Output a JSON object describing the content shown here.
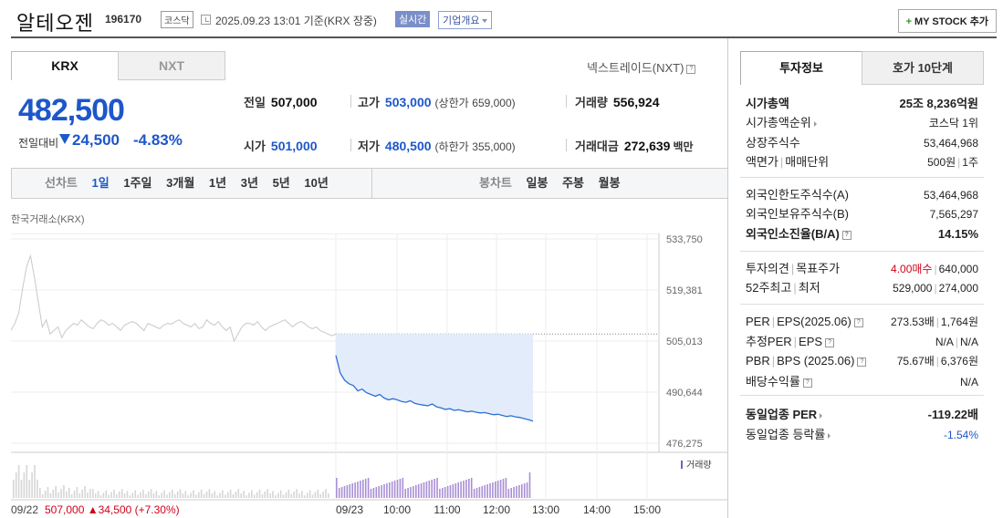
{
  "header": {
    "name": "알테오젠",
    "code": "196170",
    "market": "코스닥",
    "datetime": "2025.09.23 13:01",
    "basis": "기준(KRX 장중)",
    "live_badge": "실시간",
    "corp_info": "기업개요",
    "mystock_label": "MY STOCK 추가",
    "mystock_plus": "+"
  },
  "tabs": {
    "krx": "KRX",
    "nxt": "NXT",
    "nxt_link": "넥스트레이드(NXT)",
    "help": "?"
  },
  "price": {
    "current": "482,500",
    "change_label": "전일대비",
    "change": "24,500",
    "pct": "-4.83%"
  },
  "stats": {
    "prev_label": "전일",
    "prev": "507,000",
    "high_label": "고가",
    "high": "503,000",
    "upper_label": "(상한가",
    "upper": "659,000)",
    "volume_label": "거래량",
    "volume": "556,924",
    "open_label": "시가",
    "open": "501,000",
    "low_label": "저가",
    "low": "480,500",
    "lower_label": "(하한가",
    "lower": "355,000)",
    "amount_label": "거래대금",
    "amount": "272,639",
    "amount_unit": "백만"
  },
  "periods": {
    "line_label": "선차트",
    "line": [
      "1일",
      "1주일",
      "3개월",
      "1년",
      "3년",
      "5년",
      "10년"
    ],
    "candle_label": "봉차트",
    "candle": [
      "일봉",
      "주봉",
      "월봉"
    ]
  },
  "chart_data": {
    "type": "line",
    "source_label": "한국거래소(KRX)",
    "y_ticks": [
      "533,750",
      "519,381",
      "505,013",
      "490,644",
      "476,275"
    ],
    "ylim": [
      476275,
      533750
    ],
    "x_ticks": [
      "09/23",
      "10:00",
      "11:00",
      "12:00",
      "13:00",
      "14:00",
      "15:00"
    ],
    "prev_day_label": "09/22",
    "prev_day_close": "507,000",
    "prev_day_change": "34,500",
    "prev_day_pct": "(+7.30%)",
    "volume_label": "거래량",
    "base_price": 507000,
    "prev_series": [
      508000,
      510000,
      513000,
      520000,
      526000,
      529000,
      523000,
      516000,
      509000,
      511000,
      507000,
      508000,
      509000,
      506000,
      508000,
      509000,
      510000,
      509500,
      511000,
      510000,
      509000,
      508500,
      510000,
      511000,
      510500,
      509500,
      510000,
      509000,
      508000,
      509500,
      510000,
      510500,
      510000,
      509000,
      508000,
      510000,
      509500,
      509000,
      508500,
      509500,
      510000,
      509800,
      510500,
      511000,
      510000,
      509500,
      509000,
      510000,
      508500,
      509000,
      511000,
      510000,
      509500,
      510500,
      509000,
      508000,
      509000,
      505000,
      507000,
      509000,
      510000,
      510000,
      509500,
      510500,
      509000,
      508000,
      509000,
      509500,
      510000,
      510500,
      511000,
      510000,
      509000,
      510000,
      510500,
      510000,
      509000,
      508500,
      509000,
      508000,
      507500,
      507000,
      506500,
      507000
    ],
    "today_series": [
      501000,
      496000,
      494000,
      493000,
      492500,
      491000,
      491500,
      490500,
      490000,
      489500,
      490000,
      489000,
      488500,
      488800,
      488500,
      488000,
      487800,
      488200,
      487500,
      487200,
      487000,
      486800,
      487300,
      486500,
      486200,
      485800,
      486000,
      485500,
      485700,
      485400,
      485100,
      485300,
      485000,
      484800,
      484900,
      484600,
      484300,
      484400,
      484100,
      483800,
      484000,
      483700,
      483500,
      483200,
      482900,
      482500
    ]
  },
  "right": {
    "tab_a": "투자정보",
    "tab_b": "호가 10단계",
    "rows": [
      {
        "k": "시가총액",
        "v": "25조 8,236억원"
      },
      {
        "k": "시가총액순위",
        "v": "코스닥 1위"
      },
      {
        "k": "상장주식수",
        "v": "53,464,968"
      },
      {
        "k": "액면가",
        "k2": "매매단위",
        "v": "500원",
        "v2": "1주"
      },
      {
        "k": "외국인한도주식수(A)",
        "v": "53,464,968"
      },
      {
        "k": "외국인보유주식수(B)",
        "v": "7,565,297"
      },
      {
        "k": "외국인소진율(B/A)",
        "v": "14.15%"
      },
      {
        "k": "투자의견",
        "k2": "목표주가",
        "v": "4.00매수",
        "v2": "640,000"
      },
      {
        "k": "52주최고",
        "k2": "최저",
        "v": "529,000",
        "v2": "274,000"
      },
      {
        "k": "PER",
        "k2": "EPS(2025.06)",
        "v": "273.53배",
        "v2": "1,764원"
      },
      {
        "k": "추정PER",
        "k2": "EPS",
        "v": "N/A",
        "v2": "N/A"
      },
      {
        "k": "PBR",
        "k2": "BPS (2025.06)",
        "v": "75.67배",
        "v2": "6,376원"
      },
      {
        "k": "배당수익률",
        "v": "N/A"
      },
      {
        "k": "동일업종 PER",
        "v": "-119.22배"
      },
      {
        "k": "동일업종 등락률",
        "v": "-1.54%"
      }
    ]
  }
}
